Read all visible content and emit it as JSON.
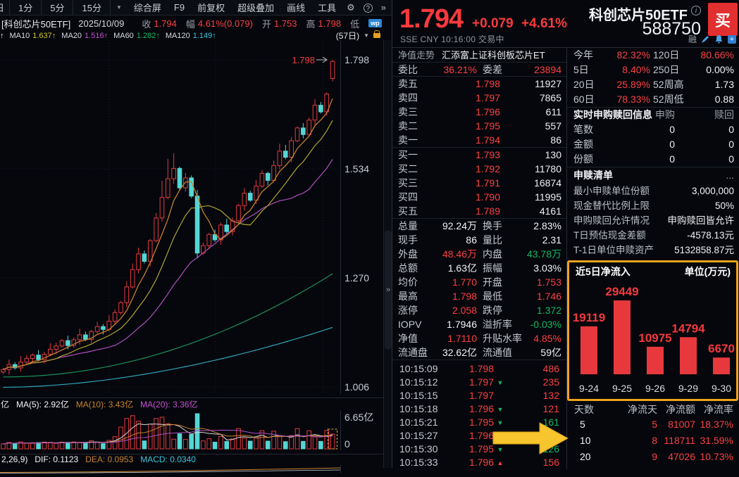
{
  "menubar": {
    "tabs": [
      "日",
      "1分",
      "5分",
      "15分"
    ],
    "items": [
      "综合屏",
      "F9",
      "前复权",
      "超级叠加",
      "画线",
      "工具"
    ],
    "gear_icon": "⚙",
    "help": "?",
    "more": "»"
  },
  "info": {
    "tag": "[科创芯片50ETF]",
    "date": "2025/10/09",
    "close_label": "收",
    "close": "1.794",
    "range_label": "幅",
    "range": "4.61%(0.079)",
    "open_label": "开",
    "open": "1.753",
    "high_label": "高",
    "high": "1.798",
    "low_label": "低",
    "wp": "wp"
  },
  "ma_row": {
    "prefix": "↑",
    "items": [
      [
        "MA10",
        "1.637↑",
        "y"
      ],
      [
        "MA20",
        "1.516↑",
        "m"
      ],
      [
        "MA60",
        "1.282↑",
        "g"
      ],
      [
        "MA120",
        "1.149↑",
        "c"
      ]
    ],
    "period": "(57日)"
  },
  "vol_header": {
    "prefix": "亿",
    "ma5": "MA(5): 2.92亿",
    "ma10": "MA(10): 3.43亿",
    "ma20": "MA(20): 3.36亿",
    "axis_max": "6.65亿",
    "axis_min": "0"
  },
  "macd_header": {
    "params": "2,26,9)",
    "dif": "DIF: 0.1123",
    "dea": "DEA: 0.0953",
    "macd": "MACD: 0.0340"
  },
  "header": {
    "price": "1.794",
    "change": "+0.079",
    "pct": "+4.61%",
    "name": "科创芯片50ETF",
    "info_icon": "i",
    "code": "588750",
    "buy_label": "买",
    "sse": "SSE  CNY  10:16:00  交易中",
    "margin_flag": "融"
  },
  "orderbook": {
    "nav": "净值走势",
    "fund": "汇添富上证科创板芯片ET",
    "weibi_label": "委比",
    "weibi": "36.21%",
    "weicha_label": "委差",
    "weicha": "23894",
    "asks": [
      [
        "卖五",
        "1.798",
        "11927"
      ],
      [
        "卖四",
        "1.797",
        "7865"
      ],
      [
        "卖三",
        "1.796",
        "611"
      ],
      [
        "卖二",
        "1.795",
        "557"
      ],
      [
        "卖一",
        "1.794",
        "86"
      ]
    ],
    "bids": [
      [
        "买一",
        "1.793",
        "130"
      ],
      [
        "买二",
        "1.792",
        "11780"
      ],
      [
        "买三",
        "1.791",
        "16874"
      ],
      [
        "买四",
        "1.790",
        "11995"
      ],
      [
        "买五",
        "1.789",
        "4161"
      ]
    ]
  },
  "stats_rows": [
    [
      [
        "总量",
        "92.24万",
        "w"
      ],
      [
        "换手",
        "2.83%",
        "w"
      ]
    ],
    [
      [
        "现手",
        "86",
        "w"
      ],
      [
        "量比",
        "2.31",
        "w"
      ]
    ],
    [
      [
        "外盘",
        "48.46万",
        "r"
      ],
      [
        "内盘",
        "43.78万",
        "g"
      ]
    ],
    [
      [
        "总额",
        "1.63亿",
        "w"
      ],
      [
        "振幅",
        "3.03%",
        "w"
      ]
    ],
    [
      [
        "均价",
        "1.770",
        "r"
      ],
      [
        "开盘",
        "1.753",
        "r"
      ]
    ],
    [
      [
        "最高",
        "1.798",
        "r"
      ],
      [
        "最低",
        "1.746",
        "r"
      ]
    ],
    [
      [
        "涨停",
        "2.058",
        "r"
      ],
      [
        "跌停",
        "1.372",
        "g"
      ]
    ],
    [
      [
        "IOPV",
        "1.7946",
        "w"
      ],
      [
        "溢折率",
        "-0.03%",
        "g"
      ]
    ],
    [
      [
        "净值",
        "1.7110",
        "r"
      ],
      [
        "升贴水率",
        "4.85%",
        "r"
      ]
    ],
    [
      [
        "流通盘",
        "32.62亿",
        "w"
      ],
      [
        "流通值",
        "59亿",
        "w"
      ]
    ]
  ],
  "ticks": [
    [
      "10:15:09",
      "1.798",
      "",
      "486",
      "r"
    ],
    [
      "10:15:12",
      "1.797",
      "d",
      "235",
      "r"
    ],
    [
      "10:15:15",
      "1.797",
      "",
      "132",
      "r"
    ],
    [
      "10:15:18",
      "1.796",
      "d",
      "121",
      "r"
    ],
    [
      "10:15:21",
      "1.795",
      "d",
      "161",
      "g"
    ],
    [
      "10:15:27",
      "1.796",
      "u",
      "",
      "r"
    ],
    [
      "10:15:30",
      "1.795",
      "d",
      "126",
      "g"
    ],
    [
      "10:15:33",
      "1.796",
      "u",
      "156",
      "r"
    ]
  ],
  "perf_rows": [
    [
      [
        "今年",
        "82.32%",
        "r"
      ],
      [
        "120日",
        "80.66%",
        "r"
      ]
    ],
    [
      [
        "5日",
        "8.40%",
        "r"
      ],
      [
        "250日",
        "0.00%",
        "w"
      ]
    ],
    [
      [
        "20日",
        "25.89%",
        "r"
      ],
      [
        "52周高",
        "1.73",
        "w"
      ]
    ],
    [
      [
        "60日",
        "78.33%",
        "r"
      ],
      [
        "52周低",
        "0.88",
        "w"
      ]
    ]
  ],
  "subscription": {
    "title": "实时申购赎回信息",
    "col_a": "申购",
    "col_b": "赎回",
    "rows": [
      [
        "笔数",
        "0",
        "0"
      ],
      [
        "金额",
        "0",
        "0"
      ],
      [
        "份额",
        "0",
        "0"
      ]
    ]
  },
  "redeem": {
    "title": "申赎清单",
    "more": "...",
    "rows": [
      [
        "最小申赎单位份额",
        "3,000,000"
      ],
      [
        "现金替代比例上限",
        "50%"
      ],
      [
        "申购赎回允许情况",
        "申购赎回皆允许"
      ],
      [
        "T日预估现金差额",
        "-4578.13元"
      ],
      [
        "T-1日单位申赎资产",
        "5132858.87元"
      ]
    ]
  },
  "flow_table": {
    "headers": [
      "天数",
      "净流天",
      "净流额",
      "净流率"
    ],
    "rows": [
      [
        "5",
        "5",
        "81007",
        "18.37%"
      ],
      [
        "10",
        "8",
        "118711",
        "31.59%"
      ],
      [
        "20",
        "9",
        "47026",
        "10.73%"
      ]
    ]
  },
  "chart_data": [
    {
      "type": "candlestick",
      "title": "科创芯片50ETF 日K 57日",
      "axis_labels": [
        "1.798",
        "1.534",
        "1.270",
        "1.006"
      ],
      "last_label": "1.798",
      "first_open": 1.042,
      "closes": [
        1.048,
        1.06,
        1.052,
        1.066,
        1.075,
        1.083,
        1.072,
        1.085,
        1.097,
        1.105,
        1.118,
        1.106,
        1.12,
        1.132,
        1.121,
        1.14,
        1.152,
        1.145,
        1.165,
        1.186,
        1.21,
        1.248,
        1.29,
        1.328,
        1.31,
        1.36,
        1.415,
        1.465,
        1.51,
        1.535,
        1.488,
        1.512,
        1.468,
        1.33,
        1.348,
        1.375,
        1.362,
        1.398,
        1.382,
        1.408,
        1.445,
        1.475,
        1.458,
        1.492,
        1.523,
        1.506,
        1.542,
        1.577,
        1.562,
        1.602,
        1.633,
        1.617,
        1.652,
        1.688,
        1.672,
        1.715,
        1.794
      ],
      "last_candle": {
        "o": 1.753,
        "h": 1.798,
        "l": 1.746,
        "c": 1.794
      },
      "wick_up": [
        0.004,
        0.012,
        0.006,
        0.015,
        0.008
      ],
      "wick_dn": [
        0.005,
        0.012,
        0.004,
        0.009
      ],
      "wick_over": {
        "21": 1.262,
        "22": 1.305,
        "27": 1.505,
        "28": 1.558,
        "29": 1.572,
        "47": 1.595
      },
      "vol_boost": {
        "19": 0.1,
        "20": 0.35,
        "21": 0.5,
        "22": 0.55,
        "23": 0.42,
        "25": 0.25,
        "26": 0.38,
        "27": 0.45,
        "28": 0.3,
        "40": 0.22,
        "44": 0.2,
        "46": 0.15,
        "50": 0.26,
        "52": 0.17,
        "55": 0.12
      },
      "vol_axis_max": "6.65亿",
      "vol_axis_min": "0"
    },
    {
      "type": "bar",
      "title": "近5日净流入",
      "unit": "单位(万元)",
      "categories": [
        "9-24",
        "9-25",
        "9-26",
        "9-29",
        "9-30"
      ],
      "values": [
        19119,
        29449,
        10975,
        14794,
        6670
      ]
    }
  ]
}
